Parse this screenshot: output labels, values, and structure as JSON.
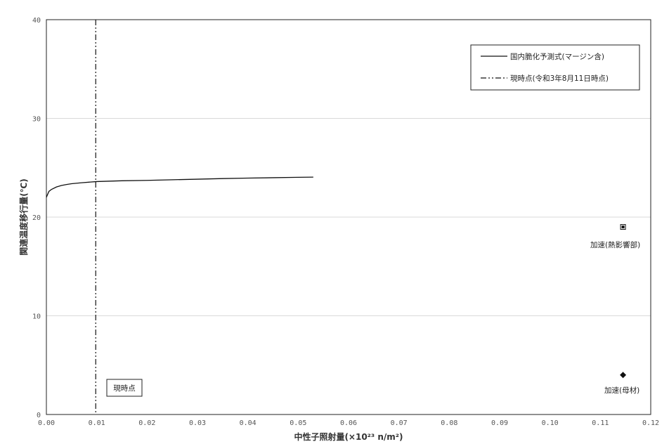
{
  "chart_data": {
    "type": "scatter",
    "title": "",
    "xlabel": "中性子照射量(×10²³ n/m²)",
    "ylabel": "関連温度移行量(℃)",
    "xlim": [
      0,
      0.12
    ],
    "ylim": [
      0,
      40
    ],
    "x_ticks": [
      "0.00",
      "0.01",
      "0.02",
      "0.03",
      "0.04",
      "0.05",
      "0.06",
      "0.07",
      "0.08",
      "0.09",
      "0.10",
      "0.11",
      "0.12"
    ],
    "y_ticks": [
      "0",
      "10",
      "20",
      "30",
      "40"
    ],
    "grid": "horizontal",
    "legend": {
      "position": "top-right",
      "entries": [
        "国内脆化予測式(マージン含)",
        "現時点(令和3年8月11日時点)"
      ]
    },
    "series": [
      {
        "name": "国内脆化予測式(マージン含)",
        "type": "line",
        "style": "solid",
        "x": [
          0.0,
          0.0005,
          0.001,
          0.002,
          0.003,
          0.004,
          0.005,
          0.007,
          0.01,
          0.015,
          0.02,
          0.025,
          0.03,
          0.035,
          0.04,
          0.045,
          0.05,
          0.053
        ],
        "y": [
          22.0,
          22.6,
          22.8,
          23.05,
          23.2,
          23.3,
          23.38,
          23.48,
          23.6,
          23.68,
          23.72,
          23.78,
          23.84,
          23.9,
          23.95,
          23.99,
          24.03,
          24.05
        ]
      },
      {
        "name": "現時点(令和3年8月11日時点)",
        "type": "vline",
        "style": "dash-dot",
        "x": 0.0098
      },
      {
        "name": "加速(熱影響部)",
        "type": "point",
        "marker": "square",
        "x": 0.1145,
        "y": 19
      },
      {
        "name": "加速(母材)",
        "type": "point",
        "marker": "diamond",
        "x": 0.1145,
        "y": 4
      }
    ],
    "annotations": [
      {
        "text": "現時点",
        "boxed": true
      },
      {
        "text": "加速(熱影響部)",
        "boxed": false
      },
      {
        "text": "加速(母材)",
        "boxed": false
      }
    ]
  }
}
